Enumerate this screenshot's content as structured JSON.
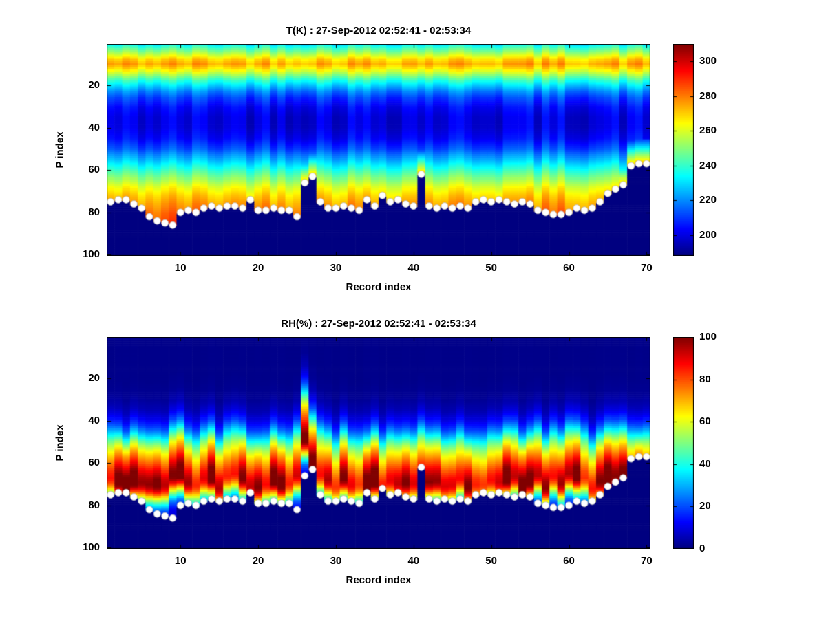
{
  "chart_data": [
    {
      "id": "temperature",
      "type": "heatmap",
      "title": "T(K) : 27-Sep-2012 02:52:41 - 02:53:34",
      "xlabel": "Record index",
      "ylabel": "P index",
      "x_ticks": [
        10,
        20,
        30,
        40,
        50,
        60,
        70
      ],
      "y_ticks": [
        20,
        40,
        60,
        80,
        100
      ],
      "x_range": [
        0.5,
        70.5
      ],
      "y_range": [
        0.5,
        100.5
      ],
      "y_axis_direction": "reversed",
      "n_records": 70,
      "n_levels": 100,
      "colormap": "jet",
      "clim": [
        188,
        310
      ],
      "colorbar_ticks": [
        200,
        220,
        240,
        260,
        280,
        300
      ],
      "profile_points": [
        [
          1,
          234
        ],
        [
          2,
          240
        ],
        [
          4,
          250
        ],
        [
          6,
          260
        ],
        [
          8,
          270
        ],
        [
          10,
          275
        ],
        [
          12,
          268
        ],
        [
          14,
          258
        ],
        [
          16,
          248
        ],
        [
          18,
          238
        ],
        [
          20,
          230
        ],
        [
          23,
          219
        ],
        [
          26,
          211
        ],
        [
          30,
          204
        ],
        [
          35,
          200
        ],
        [
          40,
          200
        ],
        [
          45,
          204
        ],
        [
          50,
          213
        ],
        [
          55,
          226
        ],
        [
          60,
          240
        ],
        [
          64,
          251
        ],
        [
          68,
          262
        ],
        [
          72,
          270
        ],
        [
          76,
          276
        ],
        [
          80,
          281
        ],
        [
          86,
          286
        ],
        [
          100,
          292
        ]
      ],
      "column_noise_amp": 6,
      "near_surface_boost": {
        "peak": 274,
        "decay_per_level": 5.5,
        "depth": 12
      },
      "masked_region": "below surface line, drawn at colormap minimum"
    },
    {
      "id": "humidity",
      "type": "heatmap",
      "title": "RH(%) : 27-Sep-2012 02:52:41 - 02:53:34",
      "xlabel": "Record index",
      "ylabel": "P index",
      "x_ticks": [
        10,
        20,
        30,
        40,
        50,
        60,
        70
      ],
      "y_ticks": [
        20,
        40,
        60,
        80,
        100
      ],
      "x_range": [
        0.5,
        70.5
      ],
      "y_range": [
        0.5,
        100.5
      ],
      "y_axis_direction": "reversed",
      "n_records": 70,
      "n_levels": 100,
      "colormap": "jet",
      "clim": [
        0,
        100
      ],
      "colorbar_ticks": [
        0,
        20,
        40,
        60,
        80,
        100
      ],
      "profile_points": [
        [
          1,
          1
        ],
        [
          20,
          1
        ],
        [
          28,
          2
        ],
        [
          34,
          5
        ],
        [
          38,
          10
        ],
        [
          42,
          18
        ],
        [
          45,
          28
        ],
        [
          48,
          40
        ],
        [
          51,
          52
        ],
        [
          54,
          62
        ],
        [
          57,
          70
        ],
        [
          60,
          78
        ],
        [
          63,
          86
        ],
        [
          66,
          93
        ],
        [
          69,
          96
        ],
        [
          71,
          90
        ],
        [
          73,
          78
        ],
        [
          75,
          62
        ],
        [
          78,
          40
        ],
        [
          81,
          22
        ],
        [
          85,
          10
        ],
        [
          100,
          5
        ]
      ],
      "column_shift_amp": 4,
      "column_intensity_range": [
        0.85,
        1.15
      ],
      "column_shift_overrides": {
        "26": 20,
        "27": 8
      },
      "masked_region": "below surface line, drawn at colormap minimum"
    }
  ],
  "surface_line": {
    "description": "white dot markers: surface P index per record, shared by both panels",
    "marker_shape": "circle",
    "marker_color": "#ffffff",
    "p_index": [
      75,
      74,
      74,
      76,
      78,
      82,
      84,
      85,
      86,
      80,
      79,
      80,
      78,
      77,
      78,
      77,
      77,
      78,
      74,
      79,
      79,
      78,
      79,
      79,
      82,
      66,
      63,
      75,
      78,
      78,
      77,
      78,
      79,
      74,
      77,
      72,
      75,
      74,
      76,
      77,
      62,
      77,
      78,
      77,
      78,
      77,
      78,
      75,
      74,
      75,
      74,
      75,
      76,
      75,
      76,
      79,
      80,
      81,
      81,
      80,
      78,
      79,
      78,
      75,
      71,
      69,
      67,
      58,
      57,
      57
    ]
  },
  "noise_seed": 42,
  "figure_background": "#ffffff"
}
